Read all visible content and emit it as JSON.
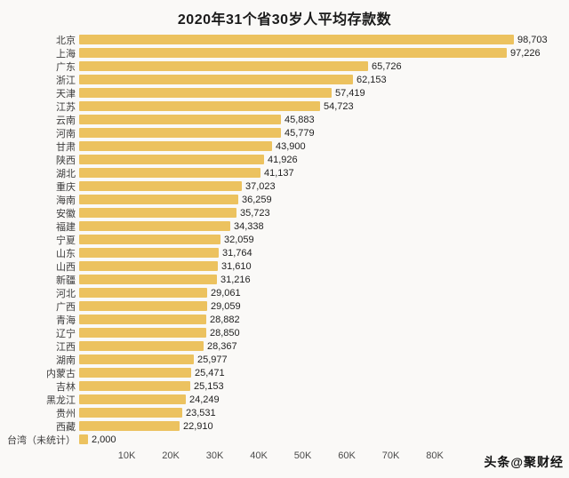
{
  "page": {
    "watermark": "头条@聚财经"
  },
  "chart_data": {
    "type": "bar",
    "orientation": "horizontal",
    "title": "2020年31个省30岁人平均存款数",
    "xlabel": "",
    "ylabel": "",
    "xlim": [
      0,
      100000
    ],
    "grid": false,
    "legend": null,
    "bar_color": "#ecc25f",
    "categories": [
      "北京",
      "上海",
      "广东",
      "浙江",
      "天津",
      "江苏",
      "云南",
      "河南",
      "甘肃",
      "陕西",
      "湖北",
      "重庆",
      "海南",
      "安徽",
      "福建",
      "宁夏",
      "山东",
      "山西",
      "新疆",
      "河北",
      "广西",
      "青海",
      "辽宁",
      "江西",
      "湖南",
      "内蒙古",
      "吉林",
      "黑龙江",
      "贵州",
      "西藏",
      "台湾（未统计）"
    ],
    "values": [
      98703,
      97226,
      65726,
      62153,
      57419,
      54723,
      45883,
      45779,
      43900,
      41926,
      41137,
      37023,
      36259,
      35723,
      34338,
      32059,
      31764,
      31610,
      31216,
      29061,
      29059,
      28882,
      28850,
      28367,
      25977,
      25471,
      25153,
      24249,
      23531,
      22910,
      2000
    ],
    "value_labels": [
      "98,703",
      "97,226",
      "65,726",
      "62,153",
      "57,419",
      "54,723",
      "45,883",
      "45,779",
      "43,900",
      "41,926",
      "41,137",
      "37,023",
      "36,259",
      "35,723",
      "34,338",
      "32,059",
      "31,764",
      "31,610",
      "31,216",
      "29,061",
      "29,059",
      "28,882",
      "28,850",
      "28,367",
      "25,977",
      "25,471",
      "25,153",
      "24,249",
      "23,531",
      "22,910",
      "2,000"
    ],
    "x_ticks": [
      {
        "label": "10K",
        "value": 10000
      },
      {
        "label": "20K",
        "value": 20000
      },
      {
        "label": "30K",
        "value": 30000
      },
      {
        "label": "40K",
        "value": 40000
      },
      {
        "label": "50K",
        "value": 50000
      },
      {
        "label": "60K",
        "value": 60000
      },
      {
        "label": "70K",
        "value": 70000
      },
      {
        "label": "80K",
        "value": 80000
      }
    ]
  }
}
